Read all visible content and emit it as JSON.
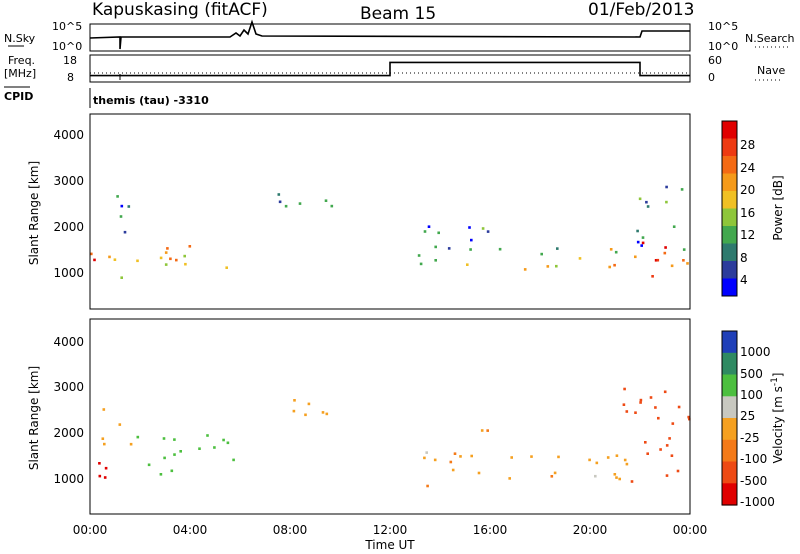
{
  "header": {
    "station": "Kapuskasing (fitACF)",
    "beam": "Beam 15",
    "date": "01/Feb/2013"
  },
  "strips": {
    "nsky_label": "N.Sky",
    "nsearch_label": "N.Search",
    "log_top": "10^5",
    "log_bottom": "10^0",
    "freq_label_1": "Freq.",
    "freq_label_2": "[MHz]",
    "freq_ticks": [
      "18",
      "8"
    ],
    "nave_label": "Nave",
    "nave_ticks": [
      "60",
      "0"
    ],
    "cpid_label": "CPID",
    "cpid_value": "themis (tau) -3310"
  },
  "colorbars": {
    "power": {
      "label": "Power [dB]",
      "ticks": [
        "28",
        "24",
        "20",
        "16",
        "12",
        "8",
        "4"
      ],
      "colors": [
        "#0000ff",
        "#2c3c9c",
        "#2e7a6e",
        "#42a84e",
        "#8ec63a",
        "#f0c024",
        "#f59a1a",
        "#f46a14",
        "#ee3a12",
        "#e00000"
      ]
    },
    "velocity": {
      "label": "Velocity [m s",
      "label_sup": "-1",
      "label_close": "]",
      "ticks": [
        "1000",
        "500",
        "100",
        "25",
        "-25",
        "-100",
        "-500",
        "-1000"
      ],
      "colors": [
        "#1f3fb8",
        "#2f8a62",
        "#4cbf3f",
        "#c8c8c0",
        "#f5a020",
        "#f47a18",
        "#ee4a14",
        "#e00000"
      ]
    }
  },
  "axes": {
    "ylabel": "Slant Range [km]",
    "xlabel": "Time UT",
    "yticks": [
      "4000",
      "3000",
      "2000",
      "1000"
    ],
    "xticks": [
      "00:00",
      "04:00",
      "08:00",
      "12:00",
      "16:00",
      "20:00",
      "00:00"
    ]
  },
  "chart_data": {
    "type": "heatmap",
    "x_range_hours": [
      0,
      24
    ],
    "y_range_km": [
      200,
      4500
    ],
    "power_bands": [
      {
        "t0": 0.0,
        "t1": 0.6,
        "r0": 800,
        "r1": 1500,
        "power": 28
      },
      {
        "t0": 0.4,
        "t1": 1.4,
        "r0": 700,
        "r1": 1600,
        "power": 16
      },
      {
        "t0": 0.3,
        "t1": 1.6,
        "r0": 1800,
        "r1": 2800,
        "power": 6
      },
      {
        "t0": 1.6,
        "t1": 5.8,
        "r0": 1100,
        "r1": 1800,
        "power": 18
      },
      {
        "t0": 6.8,
        "t1": 9.8,
        "r0": 2300,
        "r1": 2800,
        "power": 8
      },
      {
        "t0": 13.1,
        "t1": 21.8,
        "r0": 1100,
        "r1": 1600,
        "power": 16
      },
      {
        "t0": 13.2,
        "t1": 16.0,
        "r0": 1400,
        "r1": 2100,
        "power": 7
      },
      {
        "t0": 21.2,
        "t1": 24.0,
        "r0": 800,
        "r1": 1700,
        "power": 26
      },
      {
        "t0": 21.8,
        "t1": 23.8,
        "r0": 1500,
        "r1": 3000,
        "power": 9
      }
    ],
    "velocity_bands": [
      {
        "t0": 0.0,
        "t1": 1.4,
        "r0": 700,
        "r1": 1500,
        "velocity": -700
      },
      {
        "t0": 0.3,
        "t1": 1.6,
        "r0": 1700,
        "r1": 2600,
        "velocity": 0
      },
      {
        "t0": 1.4,
        "t1": 5.8,
        "r0": 1100,
        "r1": 2000,
        "velocity": 300
      },
      {
        "t0": 6.8,
        "t1": 9.8,
        "r0": 2300,
        "r1": 2800,
        "velocity": 0
      },
      {
        "t0": 13.1,
        "t1": 13.5,
        "r0": 800,
        "r1": 1200,
        "velocity": -60
      },
      {
        "t0": 13.4,
        "t1": 21.8,
        "r0": 1000,
        "r1": 1600,
        "velocity": 0
      },
      {
        "t0": 13.2,
        "t1": 16.0,
        "r0": 1400,
        "r1": 2100,
        "velocity": 0
      },
      {
        "t0": 21.3,
        "t1": 24.0,
        "r0": 800,
        "r1": 3000,
        "velocity": -150
      }
    ],
    "freq_mhz": [
      {
        "t0": 0,
        "t1": 12,
        "value": 10
      },
      {
        "t0": 12,
        "t1": 22,
        "value": 16
      },
      {
        "t0": 22,
        "t1": 24,
        "value": 10
      }
    ]
  }
}
